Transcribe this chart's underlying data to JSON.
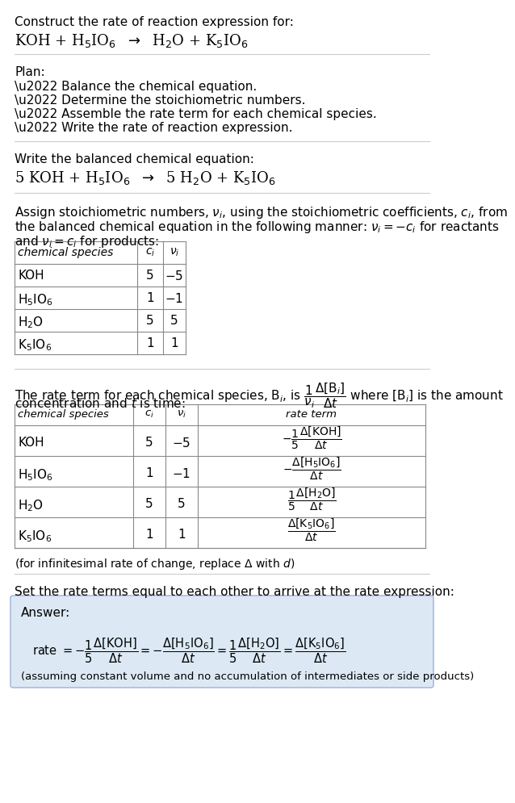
{
  "bg_color": "#ffffff",
  "text_color": "#000000",
  "answer_bg": "#dce9f5",
  "line_color": "#cccccc",
  "title_line1": "Construct the rate of reaction expression for:",
  "title_eq": "KOH + H$_5$IO$_6$  $\\rightarrow$  H$_2$O + K$_5$IO$_6$",
  "plan_header": "Plan:",
  "plan_items": [
    "\\u2022 Balance the chemical equation.",
    "\\u2022 Determine the stoichiometric numbers.",
    "\\u2022 Assemble the rate term for each chemical species.",
    "\\u2022 Write the rate of reaction expression."
  ],
  "balanced_header": "Write the balanced chemical equation:",
  "balanced_eq": "5 KOH + H$_5$IO$_6$  $\\rightarrow$  5 H$_2$O + K$_5$IO$_6$",
  "assign_text_1": "Assign stoichiometric numbers, $\\nu_i$, using the stoichiometric coefficients, $c_i$, from",
  "assign_text_2": "the balanced chemical equation in the following manner: $\\nu_i = -c_i$ for reactants",
  "assign_text_3": "and $\\nu_i = c_i$ for products:",
  "table1_headers": [
    "chemical species",
    "$c_i$",
    "$\\nu_i$"
  ],
  "table1_rows": [
    [
      "KOH",
      "5",
      "$-5$"
    ],
    [
      "H$_5$IO$_6$",
      "1",
      "$-1$"
    ],
    [
      "H$_2$O",
      "5",
      "5"
    ],
    [
      "K$_5$IO$_6$",
      "1",
      "1"
    ]
  ],
  "rate_text_1": "The rate term for each chemical species, B$_i$, is $\\dfrac{1}{\\nu_i}\\dfrac{\\Delta[\\mathrm{B}_i]}{\\Delta t}$ where [B$_i$] is the amount",
  "rate_text_2": "concentration and $t$ is time:",
  "table2_headers": [
    "chemical species",
    "$c_i$",
    "$\\nu_i$",
    "rate term"
  ],
  "table2_rows": [
    [
      "KOH",
      "5",
      "$-5$",
      "$-\\dfrac{1}{5}\\dfrac{\\Delta[\\mathrm{KOH}]}{\\Delta t}$"
    ],
    [
      "H$_5$IO$_6$",
      "1",
      "$-1$",
      "$-\\dfrac{\\Delta[\\mathrm{H_5IO_6}]}{\\Delta t}$"
    ],
    [
      "H$_2$O",
      "5",
      "5",
      "$\\dfrac{1}{5}\\dfrac{\\Delta[\\mathrm{H_2O}]}{\\Delta t}$"
    ],
    [
      "K$_5$IO$_6$",
      "1",
      "1",
      "$\\dfrac{\\Delta[\\mathrm{K_5IO_6}]}{\\Delta t}$"
    ]
  ],
  "footnote": "(for infinitesimal rate of change, replace $\\Delta$ with $d$)",
  "final_header": "Set the rate terms equal to each other to arrive at the rate expression:",
  "answer_label": "Answer:",
  "answer_eq": "rate $= -\\dfrac{1}{5}\\dfrac{\\Delta[\\mathrm{KOH}]}{\\Delta t} = -\\dfrac{\\Delta[\\mathrm{H_5IO_6}]}{\\Delta t} = \\dfrac{1}{5}\\dfrac{\\Delta[\\mathrm{H_2O}]}{\\Delta t} = \\dfrac{\\Delta[\\mathrm{K_5IO_6}]}{\\Delta t}$",
  "answer_footnote": "(assuming constant volume and no accumulation of intermediates or side products)"
}
